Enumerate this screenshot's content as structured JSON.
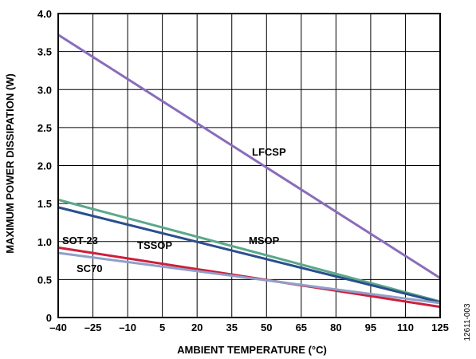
{
  "chart_data": {
    "type": "line",
    "xlabel": "AMBIENT TEMPERATURE (°C)",
    "ylabel": "MAXIMUM POWER DISSIPATION (W)",
    "xlim": [
      -40,
      125
    ],
    "ylim": [
      0,
      4.0
    ],
    "x_ticks": [
      "–40",
      "–25",
      "–10",
      "5",
      "20",
      "35",
      "50",
      "65",
      "80",
      "95",
      "110",
      "125"
    ],
    "y_ticks": [
      "0",
      "0.5",
      "1.0",
      "1.5",
      "2.0",
      "2.5",
      "3.0",
      "3.5",
      "4.0"
    ],
    "grid": true,
    "figure_id": "12611-003",
    "series": [
      {
        "name": "LFCSP",
        "color": "#8a6bbf",
        "x": [
          -40,
          125
        ],
        "y": [
          3.72,
          0.52
        ]
      },
      {
        "name": "MSOP",
        "color": "#5aa88a",
        "x": [
          -40,
          125
        ],
        "y": [
          1.55,
          0.21
        ]
      },
      {
        "name": "TSSOP",
        "color": "#2a4f8c",
        "x": [
          -40,
          125
        ],
        "y": [
          1.45,
          0.2
        ]
      },
      {
        "name": "SOT-23",
        "color": "#cc1f3c",
        "x": [
          -40,
          125
        ],
        "y": [
          0.92,
          0.14
        ]
      },
      {
        "name": "SC70",
        "color": "#8fa0c8",
        "x": [
          -40,
          125
        ],
        "y": [
          0.85,
          0.19
        ]
      }
    ]
  }
}
